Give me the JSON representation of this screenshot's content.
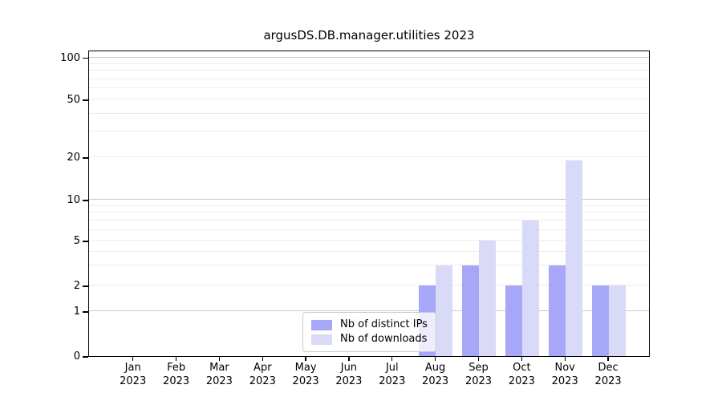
{
  "chart_data": {
    "type": "bar",
    "title": "argusDS.DB.manager.utilities 2023",
    "categories": [
      "Jan",
      "Feb",
      "Mar",
      "Apr",
      "May",
      "Jun",
      "Jul",
      "Aug",
      "Sep",
      "Oct",
      "Nov",
      "Dec"
    ],
    "x_year_label": "2023",
    "series": [
      {
        "name": "Nb of distinct IPs",
        "color": "#a7a7f7",
        "values": [
          0,
          0,
          0,
          0,
          0,
          0,
          0,
          2,
          3,
          2,
          3,
          2
        ]
      },
      {
        "name": "Nb of downloads",
        "color": "#d9d9f8",
        "values": [
          0,
          0,
          0,
          0,
          0,
          0,
          0,
          3,
          5,
          7,
          19,
          2
        ]
      }
    ],
    "yscale": "symlog",
    "yticks": [
      0,
      1,
      2,
      5,
      10,
      20,
      50,
      100
    ],
    "major_yticks": [
      1,
      10,
      100
    ],
    "minor_gridlines": [
      3,
      4,
      6,
      7,
      8,
      9,
      30,
      40,
      60,
      70,
      80,
      90
    ],
    "ylim": [
      0,
      110
    ],
    "grid": true,
    "legend_position": "lower center",
    "colors": {
      "grid_major": "#c9c9c9",
      "grid_minor": "#ececec",
      "spine": "#000000",
      "background": "#ffffff",
      "text": "#000000"
    }
  }
}
